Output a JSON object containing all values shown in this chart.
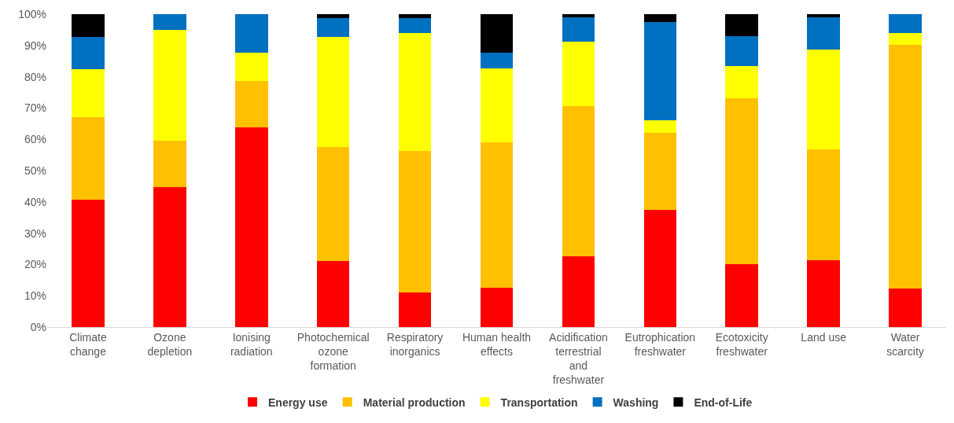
{
  "chart_data": {
    "type": "bar",
    "stacked": true,
    "categories": [
      "Climate change",
      "Ozone depletion",
      "Ionising radiation",
      "Photochemical ozone formation",
      "Respiratory inorganics",
      "Human health effects",
      "Acidification terrestrial and freshwater",
      "Eutrophication freshwater",
      "Ecotoxicity freshwater",
      "Land use",
      "Water scarcity"
    ],
    "series": [
      {
        "name": "Energy use",
        "color": "#ff0000",
        "values": [
          40.7,
          44.8,
          63.9,
          21.1,
          11.1,
          12.6,
          22.5,
          37.5,
          20.1,
          21.3,
          12.3
        ]
      },
      {
        "name": "Material production",
        "color": "#ffc000",
        "values": [
          26.4,
          14.8,
          14.8,
          36.5,
          45.1,
          46.5,
          48.0,
          24.5,
          53.0,
          35.6,
          78.0
        ]
      },
      {
        "name": "Transportation",
        "color": "#ffff00",
        "values": [
          15.2,
          35.3,
          9.0,
          35.1,
          37.7,
          23.5,
          20.8,
          4.1,
          10.2,
          31.7,
          3.6
        ]
      },
      {
        "name": "Washing",
        "color": "#0070c0",
        "values": [
          10.4,
          5.1,
          12.3,
          6.1,
          4.9,
          5.1,
          7.7,
          31.5,
          9.7,
          10.4,
          6.1
        ]
      },
      {
        "name": "End-of-Life",
        "color": "#000000",
        "values": [
          7.3,
          0,
          0,
          1.2,
          1.2,
          12.3,
          1.0,
          2.4,
          7.0,
          1.0,
          0
        ]
      }
    ],
    "ylim": [
      0,
      100
    ],
    "yticks": [
      {
        "value": 0,
        "label": "0%"
      },
      {
        "value": 10,
        "label": "10%"
      },
      {
        "value": 20,
        "label": "20%"
      },
      {
        "value": 30,
        "label": "30%"
      },
      {
        "value": 40,
        "label": "40%"
      },
      {
        "value": 50,
        "label": "50%"
      },
      {
        "value": 60,
        "label": "60%"
      },
      {
        "value": 70,
        "label": "70%"
      },
      {
        "value": 80,
        "label": "80%"
      },
      {
        "value": 90,
        "label": "90%"
      },
      {
        "value": 100,
        "label": "100%"
      }
    ],
    "grid": false,
    "legend": "bottom"
  }
}
